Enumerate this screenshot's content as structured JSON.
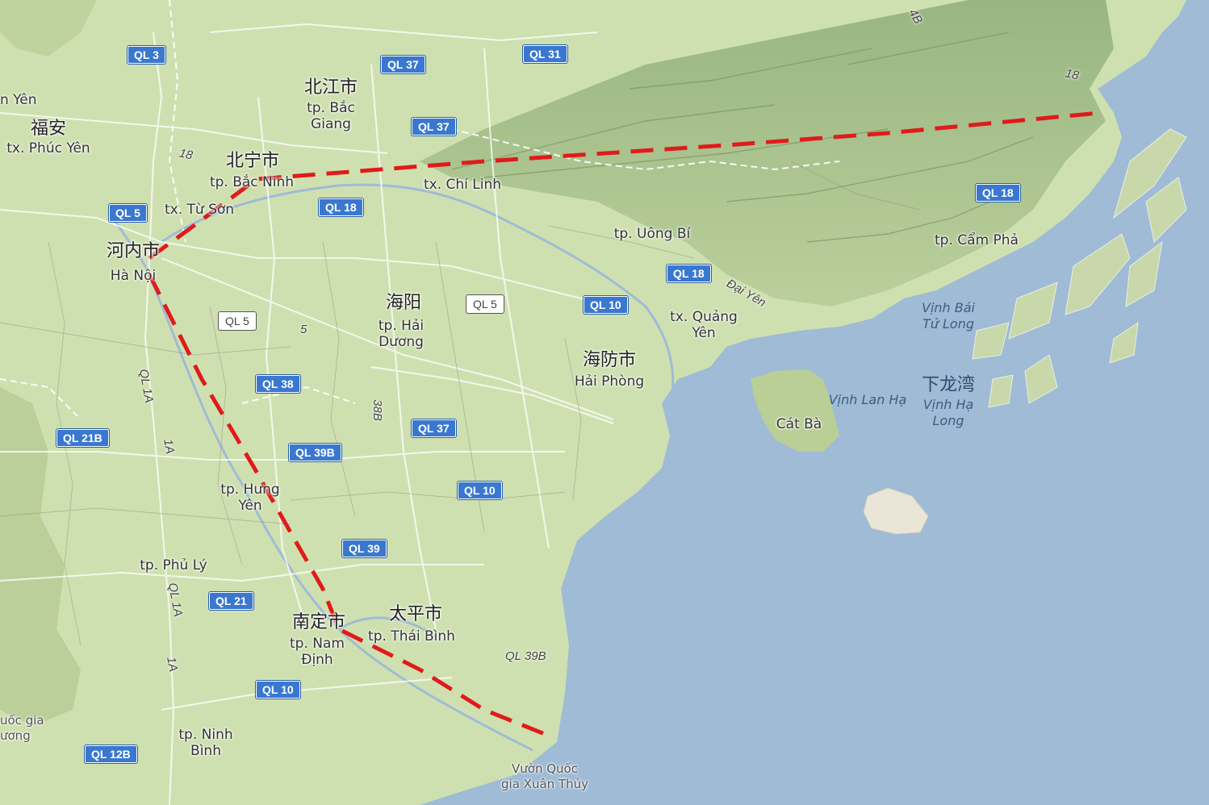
{
  "map": {
    "colors": {
      "land": "#cfe0b0",
      "water": "#9fbbd6",
      "route": "#e01b1b",
      "shield": "#3a78d0"
    },
    "places": [
      {
        "id": "bac-giang-zh",
        "text": "北江市"
      },
      {
        "id": "bac-giang",
        "text": "tp. Bắc\nGiang"
      },
      {
        "id": "phuc-yen-zh",
        "text": "福安"
      },
      {
        "id": "phuc-yen",
        "text": "tx. Phúc Yên"
      },
      {
        "id": "n-yen",
        "text": "n Yên"
      },
      {
        "id": "bac-ninh-zh",
        "text": "北宁市"
      },
      {
        "id": "bac-ninh",
        "text": "tp. Bắc Ninh"
      },
      {
        "id": "tu-son",
        "text": "tx. Từ Sơn"
      },
      {
        "id": "chi-linh",
        "text": "tx. Chí Linh"
      },
      {
        "id": "uong-bi",
        "text": "tp. Uông Bí"
      },
      {
        "id": "cam-pha",
        "text": "tp. Cẩm Phả"
      },
      {
        "id": "ha-noi-zh",
        "text": "河内市"
      },
      {
        "id": "ha-noi",
        "text": "Hà Nội"
      },
      {
        "id": "hai-duong-zh",
        "text": "海阳"
      },
      {
        "id": "hai-duong",
        "text": "tp. Hải\nDương"
      },
      {
        "id": "quang-yen",
        "text": "tx. Quảng\nYên"
      },
      {
        "id": "hai-phong-zh",
        "text": "海防市"
      },
      {
        "id": "hai-phong",
        "text": "Hải Phòng"
      },
      {
        "id": "cat-ba",
        "text": "Cát Bà"
      },
      {
        "id": "hung-yen",
        "text": "tp. Hưng\nYên"
      },
      {
        "id": "phu-ly",
        "text": "tp. Phủ Lý"
      },
      {
        "id": "nam-dinh-zh",
        "text": "南定市"
      },
      {
        "id": "nam-dinh",
        "text": "tp. Nam\nĐịnh"
      },
      {
        "id": "thai-binh-zh",
        "text": "太平市"
      },
      {
        "id": "thai-binh",
        "text": "tp. Thái Bình"
      },
      {
        "id": "ninh-binh",
        "text": "tp. Ninh\nBình"
      },
      {
        "id": "xuan-thuy",
        "text": "Vườn Quốc\ngia Xuân Thủy"
      },
      {
        "id": "uoc-gia",
        "text": "uốc gia\nương"
      }
    ],
    "water_labels": [
      {
        "id": "vinh-bai-tu-long",
        "text": "Vịnh Bái\nTử Long"
      },
      {
        "id": "vinh-lan-ha",
        "text": "Vịnh Lan Hạ"
      },
      {
        "id": "ha-long-zh",
        "text": "下龙湾"
      },
      {
        "id": "vinh-ha-long",
        "text": "Vịnh Hạ\nLong"
      }
    ],
    "shields": [
      {
        "id": "ql3",
        "text": "QL 3"
      },
      {
        "id": "ql37a",
        "text": "QL 37"
      },
      {
        "id": "ql31",
        "text": "QL 31"
      },
      {
        "id": "ql37b",
        "text": "QL 37"
      },
      {
        "id": "ql5a",
        "text": "QL 5"
      },
      {
        "id": "ql18a",
        "text": "QL 18"
      },
      {
        "id": "ql18b",
        "text": "QL 18"
      },
      {
        "id": "ql18c",
        "text": "QL 18"
      },
      {
        "id": "ql10a",
        "text": "QL 10"
      },
      {
        "id": "ql38",
        "text": "QL 38"
      },
      {
        "id": "ql21b",
        "text": "QL 21B"
      },
      {
        "id": "ql37c",
        "text": "QL 37"
      },
      {
        "id": "ql39b",
        "text": "QL 39B"
      },
      {
        "id": "ql10b",
        "text": "QL 10"
      },
      {
        "id": "ql39",
        "text": "QL 39"
      },
      {
        "id": "ql21",
        "text": "QL 21"
      },
      {
        "id": "ql10c",
        "text": "QL 10"
      },
      {
        "id": "ql12b",
        "text": "QL 12B"
      }
    ],
    "plain_shields": [
      {
        "id": "ql5b",
        "text": "QL 5"
      },
      {
        "id": "ql5c",
        "text": "QL 5"
      }
    ],
    "road_labels": [
      {
        "id": "r18a",
        "text": "18"
      },
      {
        "id": "r18b",
        "text": "18"
      },
      {
        "id": "r4b",
        "text": "4B"
      },
      {
        "id": "r5",
        "text": "5"
      },
      {
        "id": "r38b",
        "text": "38B"
      },
      {
        "id": "rql1a",
        "text": "QL 1A"
      },
      {
        "id": "r1a",
        "text": "1A"
      },
      {
        "id": "rql1a2",
        "text": "QL 1A"
      },
      {
        "id": "r1a2",
        "text": "1A"
      },
      {
        "id": "rql39b",
        "text": "QL 39B"
      },
      {
        "id": "rdaiyen",
        "text": "Đại Yên"
      }
    ]
  }
}
